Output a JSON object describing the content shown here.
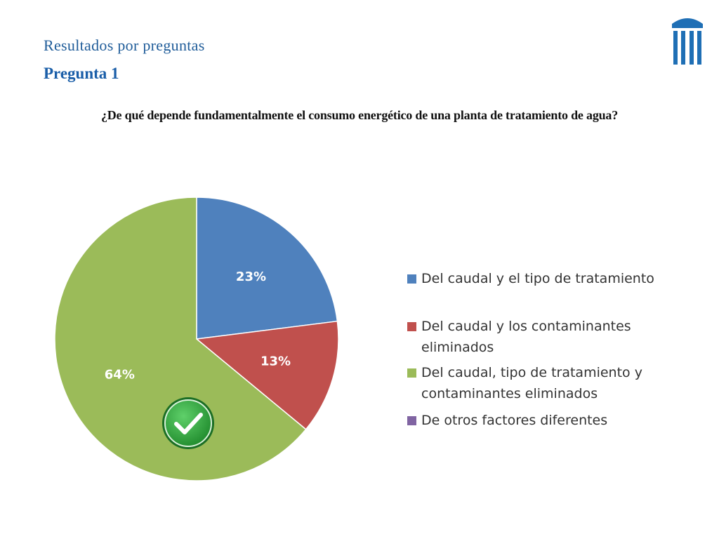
{
  "header": {
    "subtitle": "Resultados por preguntas",
    "title": "Pregunta 1",
    "question": "¿De qué depende fundamentalmente el consumo energético de una planta de tratamiento de agua?"
  },
  "colors": {
    "title": "#1a5ea8",
    "logo": "#1f6fb5",
    "check_badge": "#2e9e3a"
  },
  "icons": {
    "logo": "columns-logo-icon",
    "correct_answer": "check-circle-icon"
  },
  "chart_data": {
    "type": "pie",
    "categories": [
      "Del caudal y el tipo de tratamiento",
      "Del caudal y los contaminantes eliminados",
      "Del caudal, tipo de tratamiento y contaminantes eliminados",
      "De otros factores diferentes"
    ],
    "values": [
      23,
      13,
      64,
      0
    ],
    "value_labels": [
      "23%",
      "13%",
      "64%",
      ""
    ],
    "colors": [
      "#4f81bd",
      "#c0504d",
      "#9bbb59",
      "#8064a2"
    ],
    "correct_index": 2,
    "legend_position": "right"
  }
}
